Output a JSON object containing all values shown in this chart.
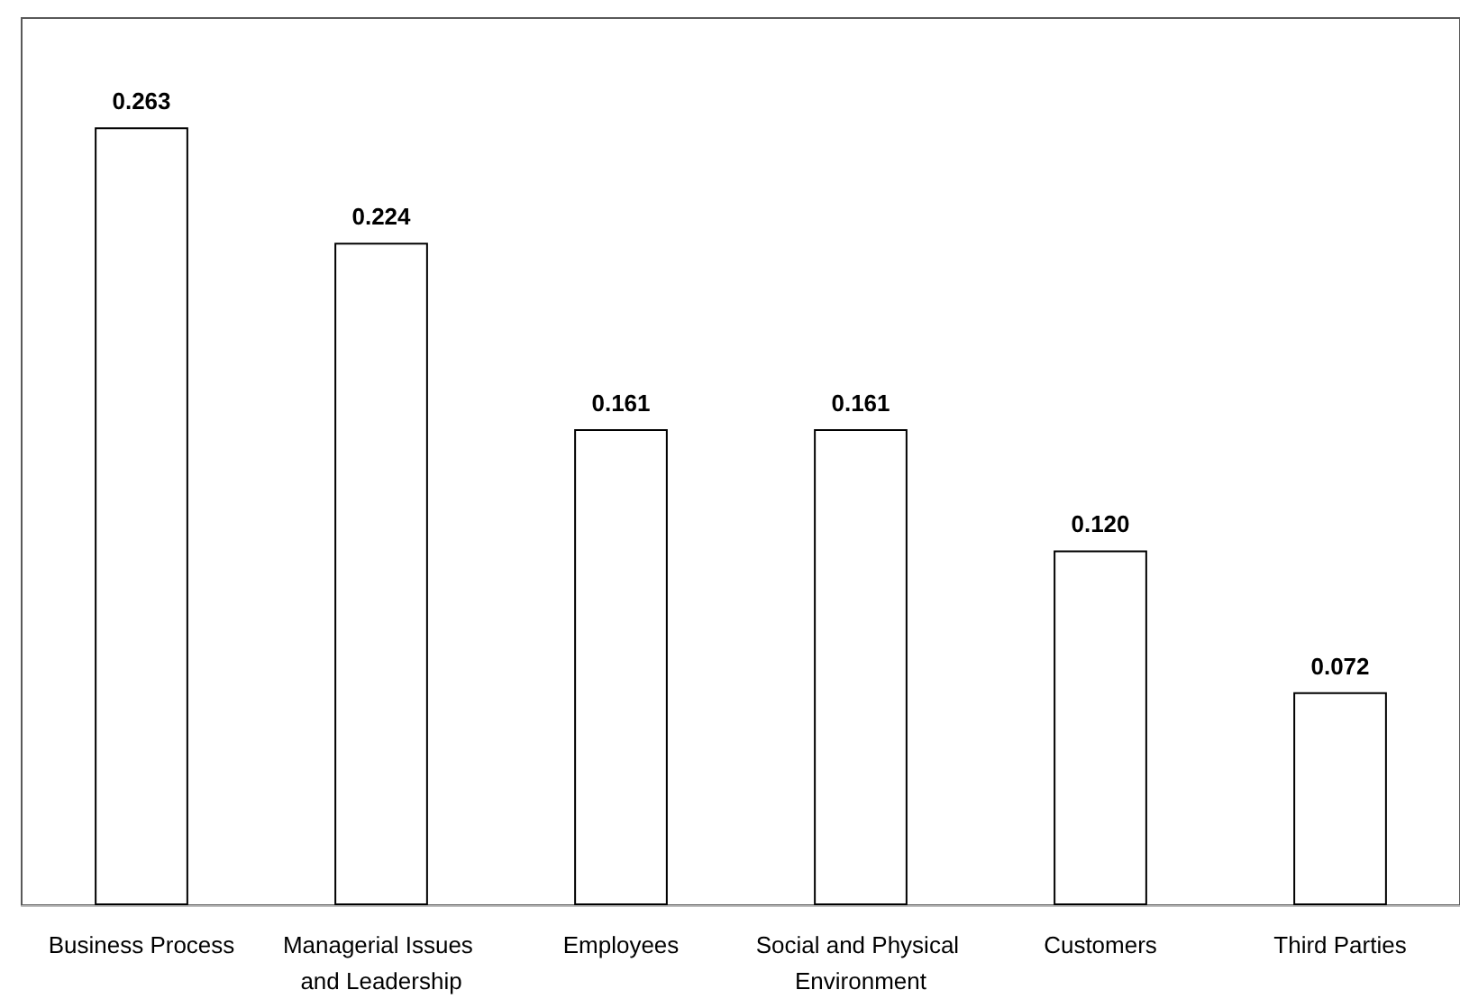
{
  "chart_data": {
    "type": "bar",
    "categories": [
      "Business Process",
      "Managerial Issues and Leadership",
      "Employees",
      "Social and Physical Environment",
      "Customers",
      "Third Parties"
    ],
    "values": [
      0.263,
      0.224,
      0.161,
      0.161,
      0.12,
      0.072
    ],
    "value_labels": [
      "0.263",
      "0.224",
      "0.161",
      "0.161",
      "0.120",
      "0.072"
    ],
    "color": "#ffffff",
    "ylim": [
      0,
      0.3
    ],
    "tick_labels": "x",
    "grid": false
  }
}
